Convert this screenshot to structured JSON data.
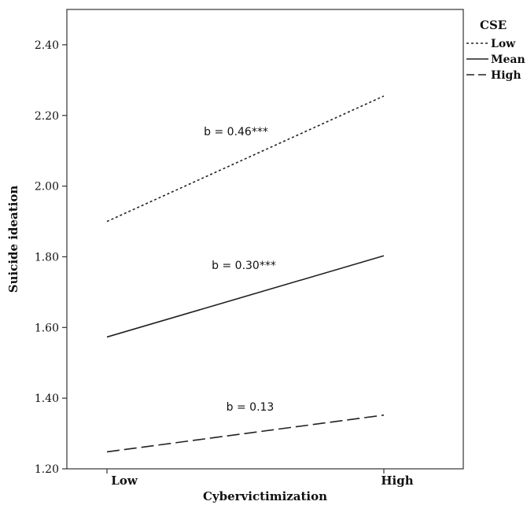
{
  "chart_data": {
    "type": "line",
    "xlabel": "Cybervictimization",
    "ylabel": "Suicide ideation",
    "categories": [
      "Low",
      "High"
    ],
    "ylim": [
      1.2,
      2.5
    ],
    "yticks": [
      "1.20",
      "1.40",
      "1.60",
      "1.80",
      "2.00",
      "2.20",
      "2.40"
    ],
    "legend": {
      "title": "CSE",
      "placement": "right-top"
    },
    "series": [
      {
        "name": "Low",
        "values": [
          1.9,
          2.255
        ],
        "style": "dotted",
        "annotation": "b = 0.46***"
      },
      {
        "name": "Mean",
        "values": [
          1.573,
          1.803
        ],
        "style": "solid",
        "annotation": "b = 0.30***"
      },
      {
        "name": "High",
        "values": [
          1.248,
          1.352
        ],
        "style": "dashed",
        "annotation": "b = 0.13"
      }
    ],
    "grid": false,
    "colors": {
      "line": "#222222",
      "axis": "#333333",
      "text": "#111111"
    }
  }
}
